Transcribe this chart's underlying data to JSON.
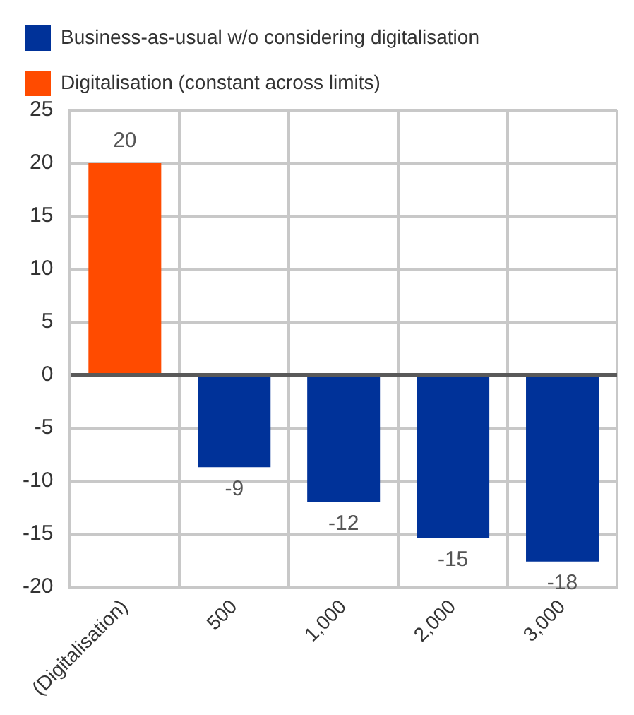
{
  "chart_data": {
    "type": "bar",
    "categories": [
      "(Digitalisation)",
      "500",
      "1,000",
      "2,000",
      "3,000"
    ],
    "series": [
      {
        "name": "Business-as-usual w/o considering digitalisation",
        "color": "#003299",
        "values": [
          null,
          -8.7,
          -12,
          -15.4,
          -17.6
        ],
        "value_labels": [
          null,
          "-9",
          "-12",
          "-15",
          "-18"
        ]
      },
      {
        "name": "Digitalisation (constant across limits)",
        "color": "#ff4b00",
        "values": [
          20,
          null,
          null,
          null,
          null
        ],
        "value_labels": [
          "20",
          null,
          null,
          null,
          null
        ]
      }
    ],
    "ylim": [
      -20,
      25
    ],
    "yticks": [
      -20,
      -15,
      -10,
      -5,
      0,
      5,
      10,
      15,
      20,
      25
    ],
    "grid": true,
    "legend": "top left"
  }
}
